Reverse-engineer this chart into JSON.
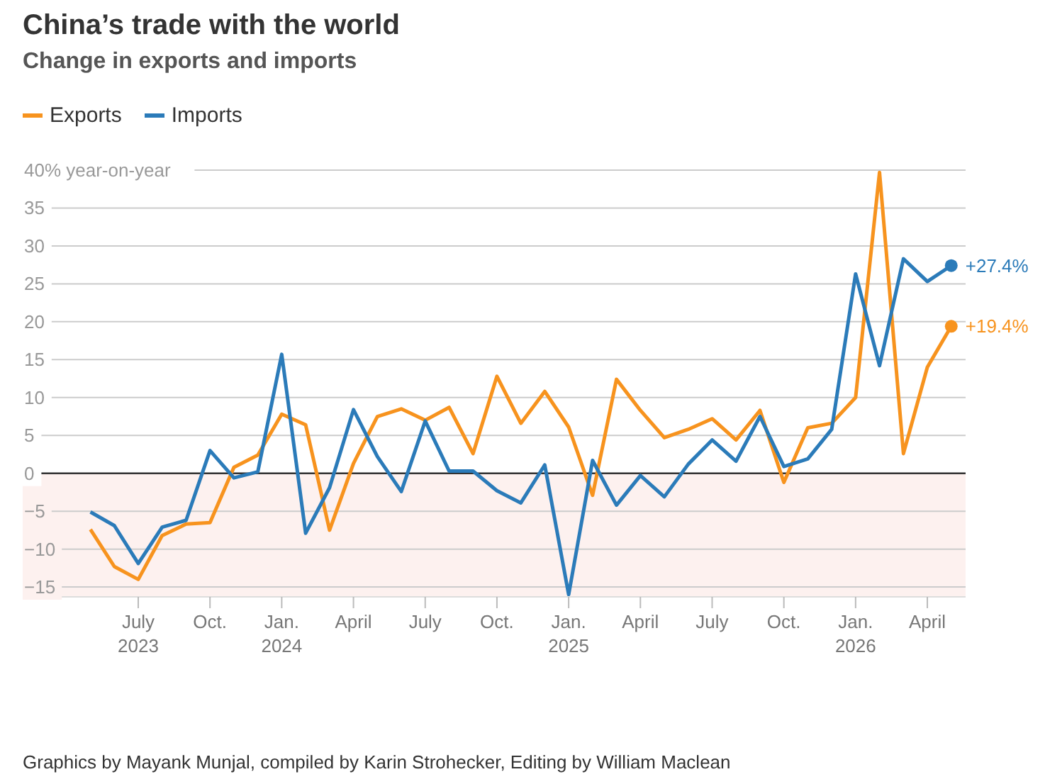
{
  "chart_data": {
    "type": "line",
    "title": "China’s trade with the world",
    "subtitle": "Change in exports and imports",
    "x": [
      "2023-05",
      "2023-06",
      "2023-07",
      "2023-08",
      "2023-09",
      "2023-10",
      "2023-11",
      "2023-12",
      "2024-01",
      "2024-02",
      "2024-03",
      "2024-04",
      "2024-05",
      "2024-06",
      "2024-07",
      "2024-08",
      "2024-09",
      "2024-10",
      "2024-11",
      "2024-12",
      "2025-01",
      "2025-02",
      "2025-03",
      "2025-04",
      "2025-05",
      "2025-06",
      "2025-07",
      "2025-08",
      "2025-09",
      "2025-10",
      "2025-11",
      "2025-12",
      "2026-01",
      "2026-02",
      "2026-03",
      "2026-04",
      "2026-05"
    ],
    "series": [
      {
        "name": "Exports",
        "color": "#f7931e",
        "values": [
          -7.4,
          -12.3,
          -14.0,
          -8.2,
          -6.7,
          -6.5,
          0.8,
          2.4,
          7.8,
          6.4,
          -7.5,
          1.3,
          7.5,
          8.5,
          7.0,
          8.7,
          2.6,
          12.8,
          6.6,
          10.8,
          6.1,
          -2.9,
          12.4,
          8.3,
          4.7,
          5.8,
          7.2,
          4.4,
          8.3,
          -1.2,
          6.0,
          6.6,
          10.0,
          39.7,
          2.6,
          14.0,
          19.4
        ]
      },
      {
        "name": "Imports",
        "color": "#2b7bb9",
        "values": [
          -5.1,
          -6.9,
          -11.9,
          -7.1,
          -6.2,
          3.0,
          -0.6,
          0.2,
          15.7,
          -7.9,
          -1.9,
          8.4,
          2.2,
          -2.4,
          6.9,
          0.3,
          0.3,
          -2.3,
          -3.9,
          1.1,
          -16.0,
          1.7,
          -4.2,
          -0.3,
          -3.1,
          1.2,
          4.4,
          1.6,
          7.5,
          0.9,
          1.9,
          5.8,
          26.3,
          14.2,
          28.3,
          25.3,
          27.4
        ]
      }
    ],
    "xlim": [
      "2023-02-06",
      "2026-05-19"
    ],
    "xticks": [
      {
        "value": "2023-07",
        "label": "July\n2023"
      },
      {
        "value": "2023-10",
        "label": "Oct."
      },
      {
        "value": "2024-01",
        "label": "Jan.\n2024"
      },
      {
        "value": "2024-04",
        "label": "April"
      },
      {
        "value": "2024-07",
        "label": "July"
      },
      {
        "value": "2024-10",
        "label": "Oct."
      },
      {
        "value": "2025-01",
        "label": "Jan.\n2025"
      },
      {
        "value": "2025-04",
        "label": "April"
      },
      {
        "value": "2025-07",
        "label": "July"
      },
      {
        "value": "2025-10",
        "label": "Oct."
      },
      {
        "value": "2026-01",
        "label": "Jan.\n2026"
      },
      {
        "value": "2026-04",
        "label": "April"
      }
    ],
    "ylim": [
      -16.3,
      40
    ],
    "yticks": [
      {
        "value": -15,
        "label": "−15"
      },
      {
        "value": -10,
        "label": "−10"
      },
      {
        "value": -5,
        "label": "−5"
      },
      0,
      5,
      10,
      15,
      20,
      25,
      30,
      35,
      {
        "value": 40,
        "label": "40% year-on-year"
      }
    ],
    "grid": "y",
    "legend": "top left",
    "ref_lines": [
      {
        "axis": "y",
        "value": 0,
        "label": null,
        "color": "#333333"
      }
    ],
    "bands": [
      {
        "axis": "y",
        "from": -16.3,
        "to": 0,
        "label": null,
        "color": "#fdf1ef"
      }
    ],
    "annotations": [
      {
        "text": "+27.4%",
        "x": "2026-05",
        "y": 27.4
      },
      {
        "text": "+19.4%",
        "x": "2026-05",
        "y": 19.4
      },
      "Graphics by Mayank Munjal, compiled by Karin Strohecker, Editing by William Maclean"
    ]
  }
}
